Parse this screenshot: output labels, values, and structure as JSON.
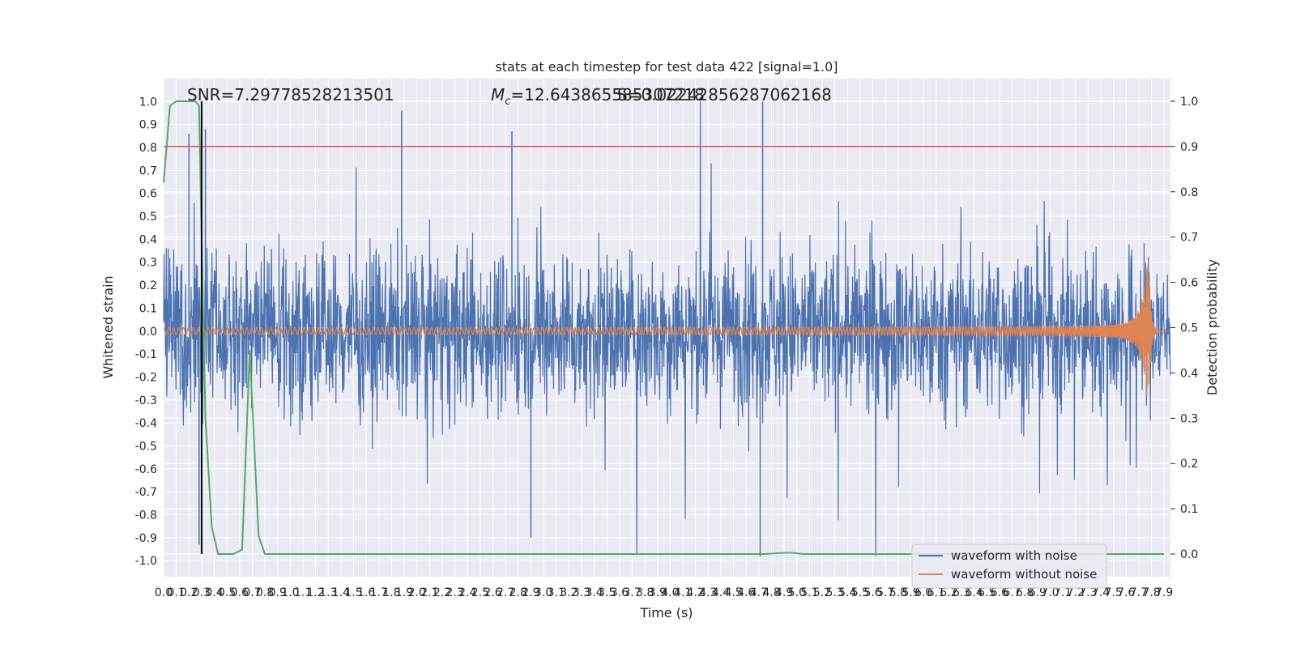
{
  "chart_data": {
    "type": "line",
    "title": "stats at each timestep for test data 422 [signal=1.0]",
    "xlabel": "Time (s)",
    "ylabel_left": "Whitened strain",
    "ylabel_right": "Detection probability",
    "xlim": [
      0.0,
      7.95
    ],
    "ylim_left": [
      -1.07,
      1.1
    ],
    "ylim_right": [
      -0.05,
      1.05
    ],
    "x_ticks": [
      "0.0",
      "0.1",
      "0.2",
      "0.3",
      "0.4",
      "0.5",
      "0.6",
      "0.7",
      "0.8",
      "0.9",
      "1.0",
      "1.1",
      "1.2",
      "1.3",
      "1.4",
      "1.5",
      "1.6",
      "1.7",
      "1.8",
      "1.9",
      "2.0",
      "2.1",
      "2.2",
      "2.3",
      "2.4",
      "2.5",
      "2.6",
      "2.7",
      "2.8",
      "2.9",
      "3.0",
      "3.1",
      "3.2",
      "3.3",
      "3.4",
      "3.5",
      "3.6",
      "3.7",
      "3.8",
      "3.9",
      "4.0",
      "4.1",
      "4.2",
      "4.3",
      "4.4",
      "4.5",
      "4.6",
      "4.7",
      "4.8",
      "4.9",
      "5.0",
      "5.1",
      "5.2",
      "5.3",
      "5.4",
      "5.5",
      "5.6",
      "5.7",
      "5.8",
      "5.9",
      "6.0",
      "6.1",
      "6.2",
      "6.3",
      "6.4",
      "6.5",
      "6.6",
      "6.7",
      "6.8",
      "6.9",
      "7.0",
      "7.1",
      "7.2",
      "7.3",
      "7.4",
      "7.5",
      "7.6",
      "7.7",
      "7.8",
      "7.9"
    ],
    "y_ticks_left": [
      "-1.0",
      "-0.9",
      "-0.8",
      "-0.7",
      "-0.6",
      "-0.5",
      "-0.4",
      "-0.3",
      "-0.2",
      "-0.1",
      "0.0",
      "0.1",
      "0.2",
      "0.3",
      "0.4",
      "0.5",
      "0.6",
      "0.7",
      "0.8",
      "0.9",
      "1.0"
    ],
    "y_ticks_right": [
      "0.0",
      "0.1",
      "0.2",
      "0.3",
      "0.4",
      "0.5",
      "0.6",
      "0.7",
      "0.8",
      "0.9",
      "1.0"
    ],
    "annotations": {
      "snr": "SNR=7.29778528213501",
      "mc_symbol": "M",
      "mc_subscript": "c",
      "mc_value": "=12.643865585307218",
      "overlap": "S=0.022428562870621​68"
    },
    "series": [
      {
        "name": "waveform with noise",
        "color": "#4c72b0",
        "axis": "left",
        "description_values": "dense noise roughly within [-0.55, 0.5], spikes up to 1.0 and down to -0.98"
      },
      {
        "name": "waveform without noise",
        "color": "#dd8452",
        "axis": "left",
        "chirp_peak_time": 7.78,
        "chirp_peak_amplitude": 0.36,
        "chirp_min_amplitude": -0.3
      },
      {
        "name": "",
        "color": "#55a868",
        "axis": "right",
        "x": [
          0.0,
          0.05,
          0.1,
          0.2,
          0.25,
          0.28,
          0.3,
          0.33,
          0.38,
          0.43,
          0.5,
          0.55,
          0.62,
          0.68,
          0.75,
          0.8,
          0.9,
          1.0,
          2.0,
          3.0,
          4.0,
          4.5,
          4.75,
          4.85,
          4.95,
          5.05,
          5.2,
          6.0,
          7.0,
          7.9
        ],
        "y": [
          0.82,
          0.99,
          1.0,
          1.0,
          1.0,
          0.99,
          0.7,
          0.3,
          0.06,
          0.0,
          0.0,
          0.0,
          0.01,
          0.45,
          0.04,
          0.0,
          0.0,
          0.0,
          0.0,
          0.0,
          0.0,
          0.0,
          0.0,
          0.002,
          0.003,
          0.0,
          0.0,
          0.0,
          0.0,
          0.0
        ]
      }
    ],
    "threshold_line": {
      "color": "#c44e52",
      "y_right": 0.9
    },
    "marker_line": {
      "color": "#000000",
      "x": 0.3
    },
    "legend_placement": "bottom-right",
    "grid": true
  }
}
